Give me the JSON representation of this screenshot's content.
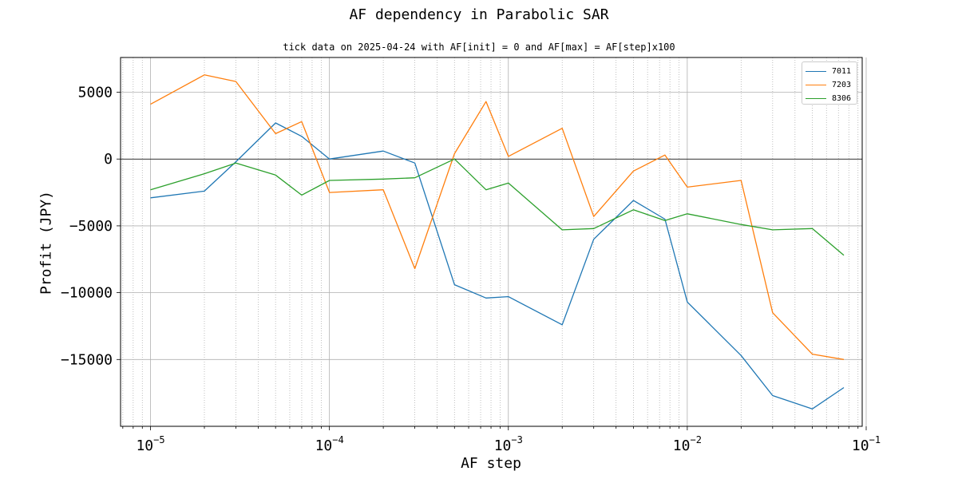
{
  "chart_data": {
    "type": "line",
    "title": "AF dependency in Parabolic SAR",
    "subtitle": "tick data on 2025-04-24 with AF[init] = 0 and AF[max] = AF[step]x100",
    "xlabel": "AF step",
    "ylabel": "Profit (JPY)",
    "xscale": "log",
    "xlim": [
      6.8e-06,
      0.095
    ],
    "ylim": [
      -20000,
      7600
    ],
    "grid": true,
    "legend_position": "top-right",
    "x": [
      1e-05,
      2e-05,
      3e-05,
      5e-05,
      7e-05,
      0.0001,
      0.0002,
      0.0003,
      0.0005,
      0.00075,
      0.001,
      0.002,
      0.003,
      0.005,
      0.0075,
      0.01,
      0.02,
      0.03,
      0.05,
      0.075
    ],
    "series": [
      {
        "name": "7011",
        "color": "#1f77b4",
        "values": [
          -2900,
          -2400,
          -200,
          2700,
          1700,
          0,
          600,
          -300,
          -9400,
          -10400,
          -10300,
          -12400,
          -6000,
          -3100,
          -4500,
          -10700,
          -14700,
          -17700,
          -18700,
          -17100
        ]
      },
      {
        "name": "7203",
        "color": "#ff7f0e",
        "values": [
          4100,
          6300,
          5800,
          1900,
          2800,
          -2500,
          -2300,
          -8200,
          400,
          4300,
          200,
          2300,
          -4300,
          -900,
          300,
          -2100,
          -1600,
          -11500,
          -14600,
          -15000
        ]
      },
      {
        "name": "8306",
        "color": "#2ca02c",
        "values": [
          -2300,
          -1100,
          -300,
          -1200,
          -2700,
          -1600,
          -1500,
          -1400,
          0,
          -2300,
          -1800,
          -5300,
          -5200,
          -3800,
          -4600,
          -4100,
          -4900,
          -5300,
          -5200,
          -7200
        ]
      }
    ],
    "x_ticks": [
      {
        "base": "10",
        "exp": "−5",
        "value": 1e-05
      },
      {
        "base": "10",
        "exp": "−4",
        "value": 0.0001
      },
      {
        "base": "10",
        "exp": "−3",
        "value": 0.001
      },
      {
        "base": "10",
        "exp": "−2",
        "value": 0.01
      },
      {
        "base": "10",
        "exp": "−1",
        "value": 0.1
      }
    ],
    "y_ticks": [
      {
        "label": "5000",
        "value": 5000
      },
      {
        "label": "0",
        "value": 0
      },
      {
        "label": "−5000",
        "value": -5000
      },
      {
        "label": "−10000",
        "value": -10000
      },
      {
        "label": "−15000",
        "value": -15000
      }
    ]
  }
}
